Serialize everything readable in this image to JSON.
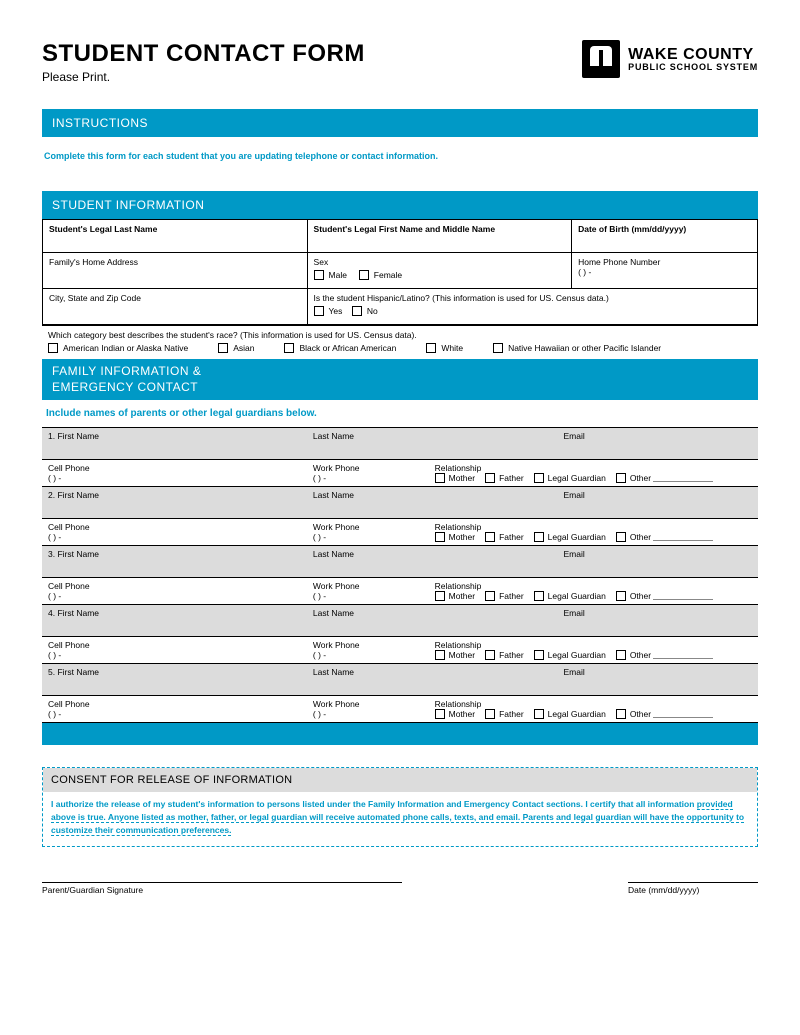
{
  "header": {
    "title": "STUDENT CONTACT FORM",
    "subtitle": "Please Print.",
    "logo_line1": "WAKE COUNTY",
    "logo_line2": "PUBLIC SCHOOL SYSTEM"
  },
  "instructions": {
    "bar": "INSTRUCTIONS",
    "text": "Complete this form for each student that you are updating telephone or contact information."
  },
  "student": {
    "bar": "STUDENT INFORMATION",
    "last_name": "Student's Legal Last Name",
    "first_middle": "Student's Legal First Name and Middle Name",
    "dob": "Date of Birth (mm/dd/yyyy)",
    "address": "Family's Home Address",
    "sex": "Sex",
    "male": "Male",
    "female": "Female",
    "home_phone": "Home Phone Number",
    "phone_tmpl": "(          )                  -",
    "city": "City, State and Zip Code",
    "hispanic_q": "Is the student Hispanic/Latino? (This information is used for US. Census data.)",
    "yes": "Yes",
    "no": "No",
    "race_q": "Which category best describes the student's race? (This information is used for US. Census data).",
    "race_opts": [
      "American Indian or Alaska Native",
      "Asian",
      "Black or African American",
      "White",
      "Native Hawaiian or other Pacific Islander"
    ]
  },
  "family": {
    "bar": "FAMILY INFORMATION &\nEMERGENCY CONTACT",
    "note": "Include names of parents or other legal guardians below.",
    "first_name": "First Name",
    "last_name": "Last Name",
    "email": "Email",
    "cell": "Cell Phone",
    "work": "Work Phone",
    "phone_tmpl": "(          )                -",
    "relationship": "Relationship",
    "rel_opts": [
      "Mother",
      "Father",
      "Legal Guardian",
      "Other"
    ],
    "rows": [
      "1.",
      "2.",
      "3.",
      "4.",
      "5."
    ]
  },
  "consent": {
    "title": "CONSENT FOR RELEASE OF INFORMATION",
    "body_1": "I authorize the release of my student's information to persons listed under the Family Information and Emergency Contact sections. I certify that all information",
    "body_2": "provided above is true. Anyone listed as mother, father, or legal guardian will receive automated phone calls, texts, and email. Parents and legal guardian will have",
    "body_3": "the opportunity to customize their communication preferences."
  },
  "signature": {
    "left": "Parent/Guardian Signature",
    "right": "Date (mm/dd/yyyy)"
  },
  "colors": {
    "brand_blue": "#0099c6",
    "gray_fill": "#dcdcdc"
  }
}
